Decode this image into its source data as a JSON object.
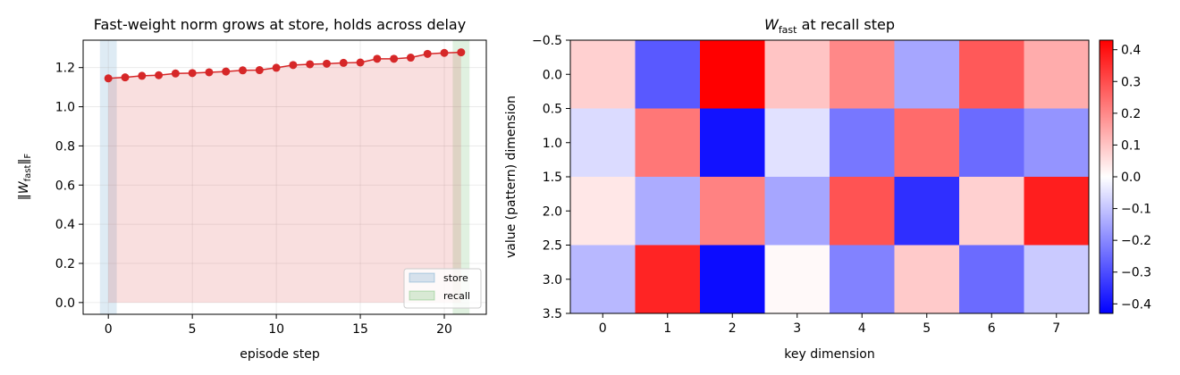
{
  "chart_data": [
    {
      "type": "line",
      "title": "Fast-weight norm grows at store, holds across delay",
      "xlabel": "episode step",
      "ylabel": "‖W_fast‖_F",
      "xlim": [
        -1.5,
        22.5
      ],
      "ylim": [
        -0.06,
        1.34
      ],
      "xticks": [
        0,
        5,
        10,
        15,
        20
      ],
      "yticks": [
        0.0,
        0.2,
        0.4,
        0.6,
        0.8,
        1.0,
        1.2
      ],
      "grid": true,
      "legend_position": "lower-right",
      "bands": [
        {
          "name": "store",
          "x0": -0.5,
          "x1": 0.5,
          "color": "#1f77b4"
        },
        {
          "name": "recall",
          "x0": 20.5,
          "x1": 21.5,
          "color": "#2ca02c"
        }
      ],
      "series": [
        {
          "color": "#d62728",
          "fill": true,
          "x": [
            0,
            1,
            2,
            3,
            4,
            5,
            6,
            7,
            8,
            9,
            10,
            11,
            12,
            13,
            14,
            15,
            16,
            17,
            18,
            19,
            20,
            21
          ],
          "y": [
            1.145,
            1.15,
            1.158,
            1.161,
            1.17,
            1.172,
            1.176,
            1.18,
            1.186,
            1.187,
            1.199,
            1.213,
            1.217,
            1.22,
            1.224,
            1.226,
            1.245,
            1.245,
            1.251,
            1.27,
            1.275,
            1.278
          ]
        }
      ]
    },
    {
      "type": "heatmap",
      "title": "W_fast at recall step",
      "xlabel": "key dimension",
      "ylabel": "value (pattern) dimension",
      "xticks": [
        0,
        1,
        2,
        3,
        4,
        5,
        6,
        7
      ],
      "yticks": [
        -0.5,
        0.0,
        0.5,
        1.0,
        1.5,
        2.0,
        2.5,
        3.0,
        3.5
      ],
      "colormap": "bwr",
      "vmin": -0.43,
      "vmax": 0.43,
      "colorbar_ticks": [
        0.4,
        0.3,
        0.2,
        0.1,
        0.0,
        -0.1,
        -0.2,
        -0.3,
        -0.4
      ],
      "values": [
        [
          0.08,
          -0.28,
          0.43,
          0.1,
          0.2,
          -0.15,
          0.28,
          0.14
        ],
        [
          -0.06,
          0.23,
          -0.4,
          -0.05,
          -0.23,
          0.25,
          -0.25,
          -0.18
        ],
        [
          0.04,
          -0.14,
          0.21,
          -0.15,
          0.29,
          -0.35,
          0.08,
          0.38
        ],
        [
          -0.12,
          0.37,
          -0.41,
          0.01,
          -0.21,
          0.09,
          -0.25,
          -0.09
        ]
      ]
    }
  ]
}
